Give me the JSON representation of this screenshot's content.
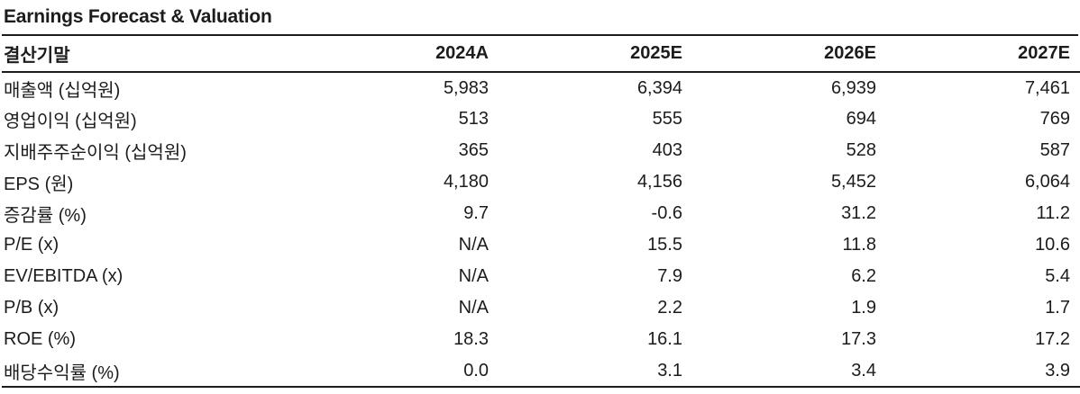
{
  "title": "Earnings Forecast & Valuation",
  "colors": {
    "text": "#1c1c1c",
    "rule": "#1c1c1c",
    "background": "#ffffff"
  },
  "table": {
    "header_label": "결산기말",
    "columns": [
      "2024A",
      "2025E",
      "2026E",
      "2027E"
    ],
    "rows": [
      {
        "label": "매출액 (십억원)",
        "values": [
          "5,983",
          "6,394",
          "6,939",
          "7,461"
        ]
      },
      {
        "label": "영업이익 (십억원)",
        "values": [
          "513",
          "555",
          "694",
          "769"
        ]
      },
      {
        "label": "지배주주순이익 (십억원)",
        "values": [
          "365",
          "403",
          "528",
          "587"
        ]
      },
      {
        "label": "EPS (원)",
        "values": [
          "4,180",
          "4,156",
          "5,452",
          "6,064"
        ]
      },
      {
        "label": "증감률 (%)",
        "values": [
          "9.7",
          "-0.6",
          "31.2",
          "11.2"
        ]
      },
      {
        "label": "P/E (x)",
        "values": [
          "N/A",
          "15.5",
          "11.8",
          "10.6"
        ]
      },
      {
        "label": "EV/EBITDA (x)",
        "values": [
          "N/A",
          "7.9",
          "6.2",
          "5.4"
        ]
      },
      {
        "label": "P/B (x)",
        "values": [
          "N/A",
          "2.2",
          "1.9",
          "1.7"
        ]
      },
      {
        "label": "ROE (%)",
        "values": [
          "18.3",
          "16.1",
          "17.3",
          "17.2"
        ]
      },
      {
        "label": "배당수익률 (%)",
        "values": [
          "0.0",
          "3.1",
          "3.4",
          "3.9"
        ]
      }
    ]
  }
}
